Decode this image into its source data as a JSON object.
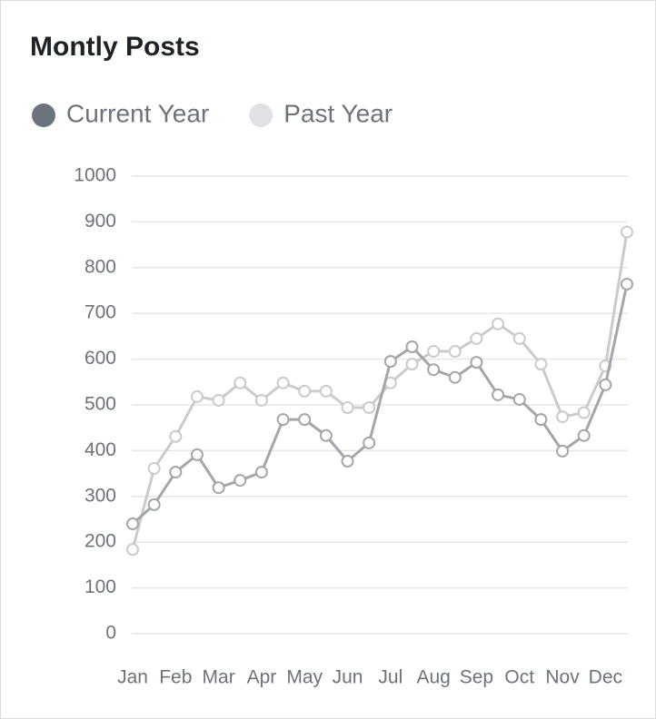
{
  "chart_data": {
    "type": "line",
    "title": "Montly Posts",
    "categories": [
      "Jan",
      null,
      "Feb",
      null,
      "Mar",
      null,
      "Apr",
      null,
      "May",
      null,
      "Jun",
      null,
      "Jul",
      null,
      "Aug",
      null,
      "Sep",
      null,
      "Oct",
      null,
      "Nov",
      null,
      "Dec",
      null
    ],
    "series": [
      {
        "name": "Current Year",
        "color": "#a3a7ab",
        "legend_color": "#6c737a",
        "values": [
          240,
          282,
          353,
          391,
          319,
          335,
          353,
          468,
          468,
          433,
          377,
          417,
          595,
          627,
          577,
          560,
          593,
          522,
          512,
          468,
          399,
          433,
          544,
          764
        ]
      },
      {
        "name": "Past Year",
        "color": "#c9cbcd",
        "legend_color": "#dfe1e4",
        "values": [
          184,
          361,
          431,
          518,
          510,
          548,
          510,
          548,
          530,
          530,
          494,
          494,
          548,
          589,
          617,
          617,
          645,
          677,
          645,
          589,
          474,
          483,
          585,
          878
        ]
      }
    ],
    "ylim": [
      0,
      1000
    ],
    "yticks": [
      0,
      100,
      200,
      300,
      400,
      500,
      600,
      700,
      800,
      900,
      1000
    ],
    "grid": true
  }
}
